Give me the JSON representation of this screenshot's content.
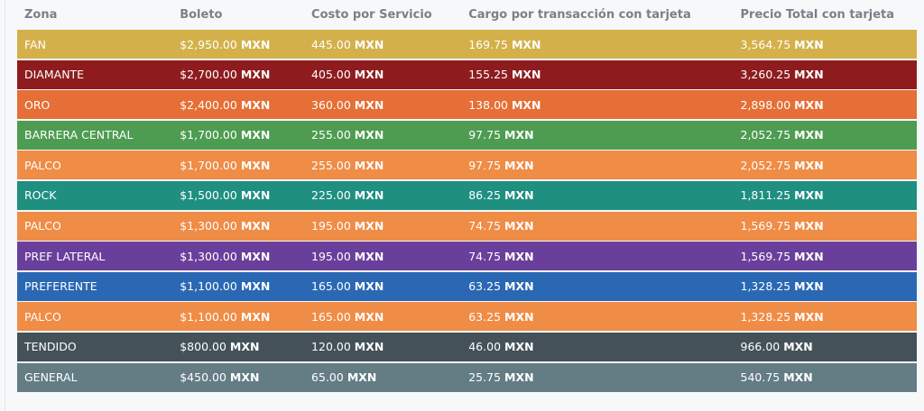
{
  "table": {
    "headers": [
      "Zona",
      "Boleto",
      "Costo por Servicio",
      "Cargo por transacción con tarjeta",
      "Precio Total con tarjeta"
    ],
    "currency": "MXN",
    "rows": [
      {
        "zona": "FAN",
        "boleto": "$2,950.00",
        "servicio": "445.00",
        "cargo": "169.75",
        "total": "3,564.75",
        "color": "#d4b04a"
      },
      {
        "zona": "DIAMANTE",
        "boleto": "$2,700.00",
        "servicio": "405.00",
        "cargo": "155.25",
        "total": "3,260.25",
        "color": "#8e1c1f"
      },
      {
        "zona": "ORO",
        "boleto": "$2,400.00",
        "servicio": "360.00",
        "cargo": "138.00",
        "total": "2,898.00",
        "color": "#e56f36"
      },
      {
        "zona": "BARRERA CENTRAL",
        "boleto": "$1,700.00",
        "servicio": "255.00",
        "cargo": "97.75",
        "total": "2,052.75",
        "color": "#4e9c52"
      },
      {
        "zona": "PALCO",
        "boleto": "$1,700.00",
        "servicio": "255.00",
        "cargo": "97.75",
        "total": "2,052.75",
        "color": "#ef8c46"
      },
      {
        "zona": "ROCK",
        "boleto": "$1,500.00",
        "servicio": "225.00",
        "cargo": "86.25",
        "total": "1,811.25",
        "color": "#1f8f80"
      },
      {
        "zona": "PALCO",
        "boleto": "$1,300.00",
        "servicio": "195.00",
        "cargo": "74.75",
        "total": "1,569.75",
        "color": "#ef8c46"
      },
      {
        "zona": "PREF LATERAL",
        "boleto": "$1,300.00",
        "servicio": "195.00",
        "cargo": "74.75",
        "total": "1,569.75",
        "color": "#6a3f9c"
      },
      {
        "zona": "PREFERENTE",
        "boleto": "$1,100.00",
        "servicio": "165.00",
        "cargo": "63.25",
        "total": "1,328.25",
        "color": "#2a68b4"
      },
      {
        "zona": "PALCO",
        "boleto": "$1,100.00",
        "servicio": "165.00",
        "cargo": "63.25",
        "total": "1,328.25",
        "color": "#ef8c46"
      },
      {
        "zona": "TENDIDO",
        "boleto": "$800.00",
        "servicio": "120.00",
        "cargo": "46.00",
        "total": "966.00",
        "color": "#445158"
      },
      {
        "zona": "GENERAL",
        "boleto": "$450.00",
        "servicio": "65.00",
        "cargo": "25.75",
        "total": "540.75",
        "color": "#647c84"
      }
    ]
  }
}
